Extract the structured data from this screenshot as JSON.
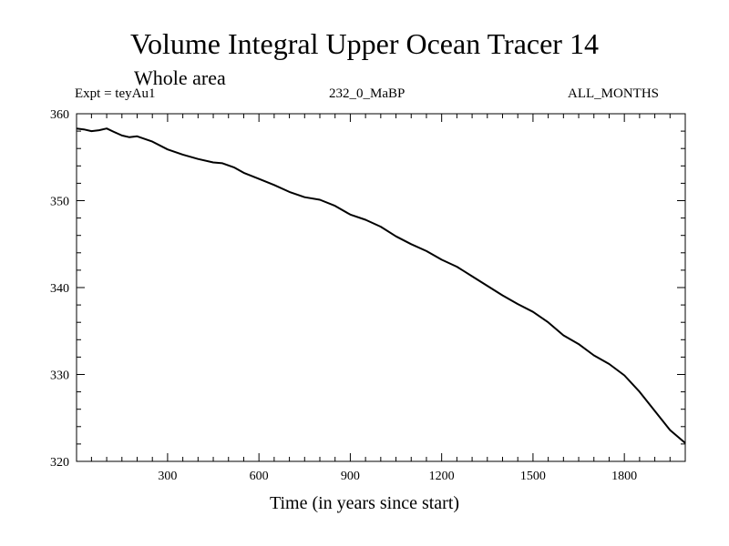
{
  "chart_data": {
    "type": "line",
    "title": "Volume Integral Upper Ocean Tracer 14",
    "subtitle": "Whole area",
    "experiment": "Expt = teyAu1",
    "period": "232_0_MaBP",
    "months": "ALL_MONTHS",
    "xlabel": "Time (in years since start)",
    "ylabel": "",
    "xlim": [
      1,
      2000
    ],
    "ylim": [
      320,
      360
    ],
    "x_major_ticks": [
      300,
      600,
      900,
      1200,
      1500,
      1800
    ],
    "y_major_ticks": [
      320,
      330,
      340,
      350,
      360
    ],
    "grid": false,
    "series": [
      {
        "name": "Tracer 14",
        "x": [
          1,
          25,
          50,
          75,
          100,
          125,
          150,
          175,
          200,
          250,
          300,
          350,
          400,
          450,
          480,
          520,
          550,
          600,
          650,
          700,
          750,
          800,
          850,
          900,
          950,
          1000,
          1050,
          1100,
          1150,
          1200,
          1250,
          1300,
          1350,
          1400,
          1450,
          1500,
          1550,
          1600,
          1650,
          1700,
          1750,
          1800,
          1850,
          1900,
          1950,
          2000
        ],
        "values": [
          358.3,
          358.2,
          358.0,
          358.1,
          358.3,
          357.9,
          357.5,
          357.3,
          357.4,
          356.8,
          355.9,
          355.3,
          354.8,
          354.4,
          354.3,
          353.8,
          353.2,
          352.5,
          351.8,
          351.0,
          350.4,
          350.1,
          349.4,
          348.4,
          347.8,
          347.0,
          345.9,
          345.0,
          344.2,
          343.2,
          342.4,
          341.3,
          340.2,
          339.1,
          338.1,
          337.2,
          336.0,
          334.5,
          333.5,
          332.2,
          331.2,
          329.9,
          328.0,
          325.8,
          323.6,
          322.1
        ]
      }
    ]
  }
}
